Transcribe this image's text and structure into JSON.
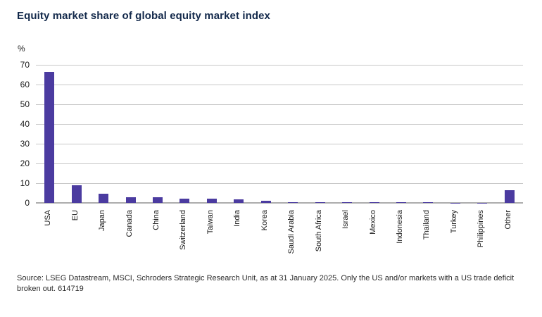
{
  "title": "Equity market share of global equity market index",
  "source_note": "Source: LSEG Datastream, MSCI, Schroders Strategic Research Unit, as at 31 January 2025. Only the US and/or markets with a US trade deficit broken out. 614719",
  "colors": {
    "bar": "#4B3BA0",
    "title_text": "#13294B",
    "gridline": "#C8C8C8",
    "baseline": "#ADADAD",
    "axis_text": "#1A1A1A"
  },
  "chart_data": {
    "type": "bar",
    "title": "Equity market share of global equity market index",
    "unit_label": "%",
    "categories": [
      "USA",
      "EU",
      "Japan",
      "Canada",
      "China",
      "Switzerland",
      "Taiwan",
      "India",
      "Korea",
      "Saudi Arabia",
      "South Africa",
      "Israel",
      "Mexico",
      "Indonesia",
      "Thailand",
      "Turkey",
      "Philippines",
      "Other"
    ],
    "values": [
      66.5,
      8.9,
      4.7,
      2.7,
      2.9,
      2.1,
      2.0,
      1.9,
      1.1,
      0.5,
      0.4,
      0.3,
      0.3,
      0.25,
      0.2,
      0.05,
      0.05,
      6.4
    ],
    "xlabel": "",
    "ylabel": "%",
    "ylim": [
      0,
      70
    ],
    "ytick_step": 10,
    "grid": "horizontal",
    "legend": "none",
    "bar_color": "#4B3BA0"
  }
}
